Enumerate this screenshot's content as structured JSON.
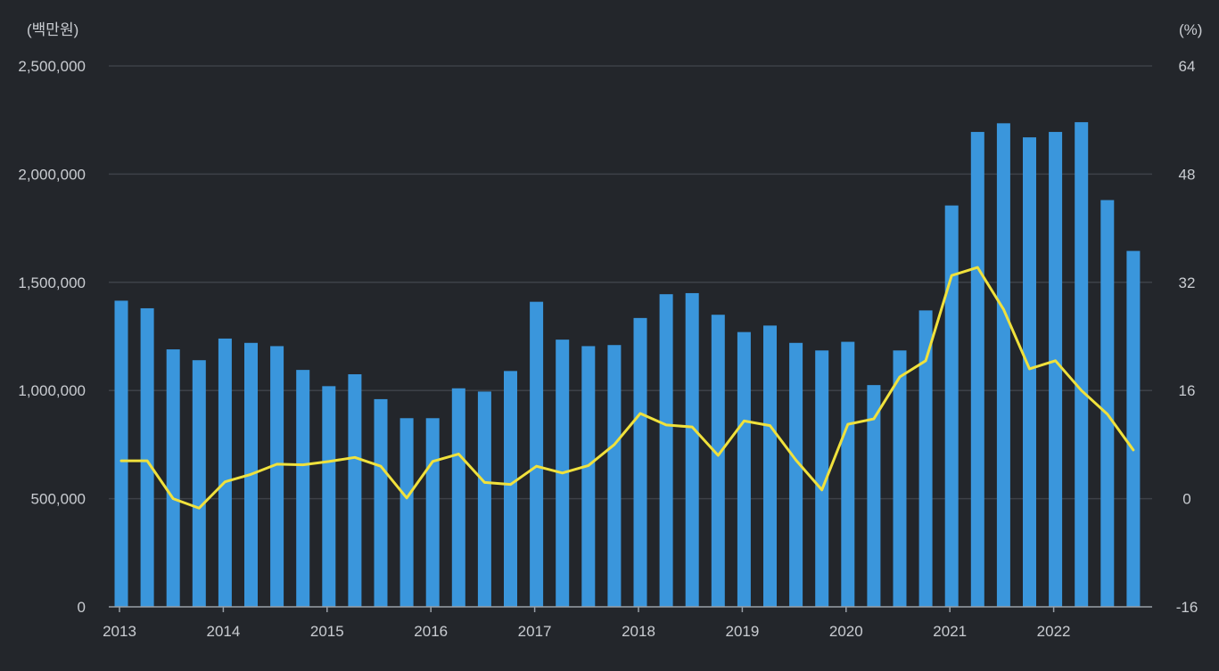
{
  "chart_data": {
    "type": "bar",
    "left_unit": "(백만원)",
    "right_unit": "(%)",
    "x": [
      "2013 Q1",
      "2013 Q2",
      "2013 Q3",
      "2013 Q4",
      "2014 Q1",
      "2014 Q2",
      "2014 Q3",
      "2014 Q4",
      "2015 Q1",
      "2015 Q2",
      "2015 Q3",
      "2015 Q4",
      "2016 Q1",
      "2016 Q2",
      "2016 Q3",
      "2016 Q4",
      "2017 Q1",
      "2017 Q2",
      "2017 Q3",
      "2017 Q4",
      "2018 Q1",
      "2018 Q2",
      "2018 Q3",
      "2018 Q4",
      "2019 Q1",
      "2019 Q2",
      "2019 Q3",
      "2019 Q4",
      "2020 Q1",
      "2020 Q2",
      "2020 Q3",
      "2020 Q4",
      "2021 Q1",
      "2021 Q2",
      "2021 Q3",
      "2021 Q4",
      "2022 Q1",
      "2022 Q2",
      "2022 Q3",
      "2022 Q4"
    ],
    "x_tick_labels": [
      "2013",
      "2014",
      "2015",
      "2016",
      "2017",
      "2018",
      "2019",
      "2020",
      "2021",
      "2022"
    ],
    "y_left_ticks": [
      "0",
      "500,000",
      "1,000,000",
      "1,500,000",
      "2,000,000",
      "2,500,000"
    ],
    "y_left_range": [
      0,
      2500000
    ],
    "y_right_ticks": [
      "-16",
      "0",
      "16",
      "32",
      "48",
      "64"
    ],
    "y_right_range": [
      -16,
      64
    ],
    "grid": true,
    "series": [
      {
        "axis": "left",
        "type": "bar",
        "color": "#3a96dc",
        "values": [
          1415000,
          1380000,
          1190000,
          1140000,
          1240000,
          1220000,
          1205000,
          1095000,
          1020000,
          1075000,
          960000,
          872000,
          872000,
          1010000,
          995000,
          1090000,
          1410000,
          1235000,
          1205000,
          1210000,
          1335000,
          1445000,
          1450000,
          1350000,
          1270000,
          1300000,
          1220000,
          1185000,
          1225000,
          1025000,
          1185000,
          1370000,
          1855000,
          2195000,
          2235000,
          2170000,
          2195000,
          2240000,
          1880000,
          1645000
        ]
      },
      {
        "axis": "right",
        "type": "line",
        "color": "#f0e13c",
        "values": [
          5.6,
          5.6,
          0.0,
          -1.4,
          2.5,
          3.6,
          5.1,
          5.0,
          5.5,
          6.1,
          4.8,
          0.1,
          5.5,
          6.6,
          2.4,
          2.1,
          4.8,
          3.8,
          4.9,
          8.0,
          12.6,
          10.9,
          10.6,
          6.4,
          11.5,
          10.8,
          5.7,
          1.3,
          11.0,
          11.8,
          18.0,
          20.4,
          33.0,
          34.2,
          28.0,
          19.2,
          20.4,
          16.0,
          12.5,
          7.2
        ]
      }
    ]
  }
}
